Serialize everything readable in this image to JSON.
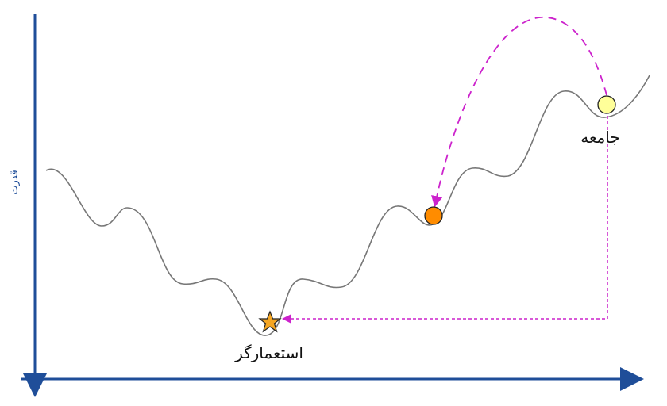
{
  "diagram": {
    "y_axis_label": "قدرت",
    "labels": {
      "colonizer": "استعمارگر",
      "society": "جامعه"
    },
    "colors": {
      "axis": "#1f4e99",
      "curve": "#777777",
      "arrow": "#cc22cc",
      "society_ball": "#ffff99",
      "fallen_ball": "#ff8c00",
      "star": "#f5a623"
    },
    "markers": {
      "society": "yellow-circle",
      "fallen_society": "orange-circle",
      "colonizer": "star"
    }
  }
}
